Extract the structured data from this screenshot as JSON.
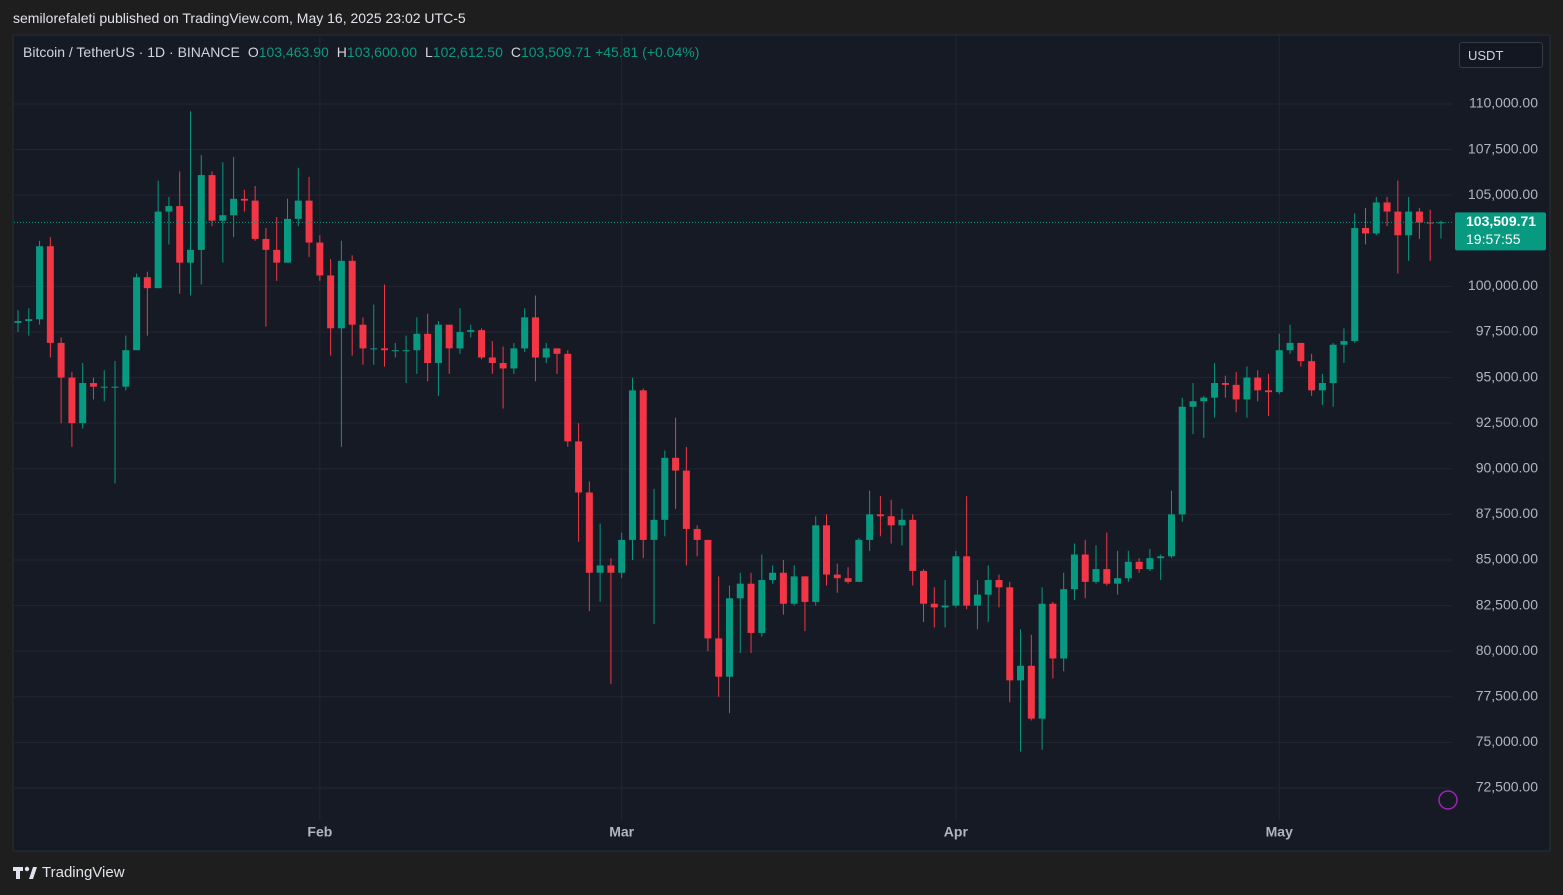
{
  "header": {
    "attribution": "semilorefaleti published on TradingView.com, May 16, 2025 23:02 UTC-5"
  },
  "footer": {
    "brand": "TradingView"
  },
  "chart_data": {
    "type": "candlestick",
    "title": "Bitcoin / TetherUS · 1D · BINANCE",
    "legend_values": [
      {
        "label": "O",
        "value": "103,463.90"
      },
      {
        "label": "H",
        "value": "103,600.00"
      },
      {
        "label": "L",
        "value": "102,612.50"
      },
      {
        "label": "C",
        "value": "103,509.71"
      }
    ],
    "change": "+45.81 (+0.04%)",
    "currency": "USDT",
    "last_price_label": "103,509.71",
    "countdown": "19:57:55",
    "up_color": "#089981",
    "down_color": "#f23645",
    "grid": true,
    "ylim": [
      69100,
      113780
    ],
    "yticks": [
      {
        "value": 72500,
        "label": "72,500.00"
      },
      {
        "value": 75000,
        "label": "75,000.00"
      },
      {
        "value": 77500,
        "label": "77,500.00"
      },
      {
        "value": 80000,
        "label": "80,000.00"
      },
      {
        "value": 82500,
        "label": "82,500.00"
      },
      {
        "value": 85000,
        "label": "85,000.00"
      },
      {
        "value": 87500,
        "label": "87,500.00"
      },
      {
        "value": 90000,
        "label": "90,000.00"
      },
      {
        "value": 92500,
        "label": "92,500.00"
      },
      {
        "value": 95000,
        "label": "95,000.00"
      },
      {
        "value": 97500,
        "label": "97,500.00"
      },
      {
        "value": 100000,
        "label": "100,000.00"
      },
      {
        "value": 105000,
        "label": "105,000.00"
      },
      {
        "value": 107500,
        "label": "107,500.00"
      },
      {
        "value": 110000,
        "label": "110,000.00"
      }
    ],
    "categories": [
      null,
      null,
      null,
      null,
      null,
      null,
      null,
      null,
      null,
      null,
      null,
      null,
      null,
      null,
      null,
      null,
      null,
      null,
      null,
      null,
      null,
      null,
      null,
      null,
      null,
      null,
      null,
      null,
      "Feb",
      null,
      null,
      null,
      null,
      null,
      null,
      null,
      null,
      null,
      null,
      null,
      null,
      null,
      null,
      null,
      null,
      null,
      null,
      null,
      null,
      null,
      null,
      null,
      null,
      null,
      null,
      null,
      "Mar",
      null,
      null,
      null,
      null,
      null,
      null,
      null,
      null,
      null,
      null,
      null,
      null,
      null,
      null,
      null,
      null,
      null,
      null,
      null,
      null,
      null,
      null,
      null,
      null,
      null,
      null,
      null,
      null,
      null,
      null,
      "Apr",
      null,
      null,
      null,
      null,
      null,
      null,
      null,
      null,
      null,
      null,
      null,
      null,
      null,
      null,
      null,
      null,
      null,
      null,
      null,
      null,
      null,
      null,
      null,
      null,
      null,
      null,
      null,
      null,
      null,
      "May",
      null,
      null,
      null,
      null,
      null,
      null,
      null,
      null,
      null,
      null,
      null,
      null,
      null,
      null,
      null
    ],
    "open": [
      98000,
      98100,
      98200,
      102200,
      96900,
      95000,
      92500,
      94700,
      94500,
      94500,
      94500,
      96500,
      100500,
      99900,
      104100,
      104400,
      101300,
      102000,
      106100,
      103600,
      103900,
      104800,
      104700,
      102600,
      102000,
      101300,
      103700,
      104700,
      102400,
      100600,
      97700,
      101400,
      97900,
      96600,
      96600,
      96500,
      96500,
      96500,
      97400,
      95800,
      97900,
      96600,
      97500,
      97600,
      96100,
      95800,
      95500,
      96600,
      98300,
      96100,
      96600,
      96300,
      91500,
      88700,
      84300,
      84700,
      84300,
      86100,
      94300,
      86100,
      87200,
      90600,
      89900,
      86700,
      86100,
      80700,
      78600,
      82900,
      83700,
      81000,
      83900,
      84300,
      82600,
      84100,
      82700,
      86900,
      84200,
      84000,
      83800,
      86100,
      87500,
      87400,
      86900,
      87200,
      84400,
      82600,
      82400,
      82500,
      85200,
      82500,
      83100,
      83900,
      83500,
      78400,
      79200,
      76300,
      82600,
      79600,
      83400,
      85300,
      83800,
      84500,
      83700,
      84000,
      84900,
      84500,
      85100,
      85200,
      87500,
      93400,
      93700,
      93900,
      94700,
      94600,
      93800,
      95000,
      94300,
      94200,
      96500,
      96900,
      95900,
      94300,
      94700,
      96800,
      97000,
      103200,
      102900,
      104600,
      104100,
      102800,
      104100,
      103500,
      103463.9
    ],
    "high": [
      98700,
      98800,
      102500,
      102700,
      97200,
      95300,
      95800,
      95000,
      95400,
      95900,
      97300,
      100700,
      100800,
      105800,
      104900,
      106300,
      109600,
      107200,
      106300,
      106800,
      107100,
      105300,
      105500,
      103200,
      103800,
      104800,
      106500,
      106000,
      102800,
      101500,
      102500,
      101700,
      98300,
      99000,
      100100,
      96900,
      97300,
      98300,
      98500,
      98100,
      97900,
      98800,
      97900,
      97700,
      97000,
      96700,
      96900,
      98800,
      99500,
      96900,
      96500,
      96500,
      92500,
      89300,
      87000,
      85100,
      86500,
      95000,
      94400,
      88900,
      91000,
      92800,
      91200,
      86900,
      86100,
      84100,
      83600,
      84300,
      84300,
      85300,
      84700,
      85000,
      84700,
      84100,
      87400,
      87500,
      84800,
      84600,
      86200,
      88800,
      88500,
      88300,
      87800,
      87500,
      84500,
      83500,
      83900,
      85500,
      88500,
      83900,
      84700,
      84200,
      83800,
      81200,
      80900,
      83500,
      82700,
      84300,
      85900,
      86100,
      85800,
      86500,
      85500,
      85500,
      85100,
      85600,
      85300,
      88800,
      93900,
      94700,
      94000,
      95800,
      95100,
      95300,
      95600,
      95400,
      95200,
      97400,
      97900,
      96900,
      96300,
      95200,
      96900,
      97700,
      104000,
      104300,
      104900,
      104900,
      105800,
      104900,
      104300,
      104200,
      103600
    ],
    "low": [
      97500,
      97300,
      97900,
      96100,
      92500,
      91200,
      92200,
      93800,
      93700,
      89200,
      94300,
      96500,
      97300,
      99900,
      102300,
      99600,
      99500,
      100100,
      103300,
      101300,
      102700,
      104100,
      102500,
      97800,
      100300,
      101300,
      103300,
      101600,
      100300,
      96200,
      91200,
      96200,
      95700,
      95700,
      95600,
      96100,
      94700,
      95200,
      94800,
      94000,
      95200,
      96300,
      97200,
      96000,
      95200,
      93300,
      95200,
      96400,
      94800,
      95800,
      95200,
      91200,
      86000,
      82200,
      82700,
      78200,
      84000,
      85000,
      85100,
      81500,
      86300,
      87800,
      84700,
      85200,
      80000,
      77500,
      76600,
      79900,
      79900,
      80800,
      83700,
      82000,
      82500,
      81100,
      82500,
      83600,
      83200,
      83700,
      83800,
      85500,
      86300,
      85900,
      85800,
      83600,
      81600,
      81300,
      81300,
      82400,
      82300,
      81200,
      81600,
      82400,
      77200,
      74500,
      76200,
      74600,
      78500,
      78900,
      82800,
      82900,
      83700,
      83600,
      83100,
      83800,
      84300,
      84400,
      83900,
      85100,
      87100,
      91900,
      91700,
      92800,
      93900,
      93100,
      92800,
      93700,
      92900,
      94100,
      96300,
      95600,
      94000,
      93500,
      93400,
      95800,
      96900,
      102300,
      102800,
      103300,
      100700,
      101400,
      102600,
      101400,
      102612.5
    ],
    "close": [
      98100,
      98200,
      102200,
      96900,
      95000,
      92500,
      94700,
      94500,
      94500,
      94500,
      96500,
      100500,
      99900,
      104100,
      104400,
      101300,
      102000,
      106100,
      103600,
      103900,
      104800,
      104700,
      102600,
      102000,
      101300,
      103700,
      104700,
      102400,
      100600,
      97700,
      101400,
      97900,
      96600,
      96600,
      96500,
      96500,
      96500,
      97400,
      95800,
      97900,
      96600,
      97500,
      97600,
      96100,
      95800,
      95500,
      96600,
      98300,
      96100,
      96600,
      96300,
      91500,
      88700,
      84300,
      84700,
      84300,
      86100,
      94300,
      86100,
      87200,
      90600,
      89900,
      86700,
      86100,
      80700,
      78600,
      82900,
      83700,
      81000,
      83900,
      84300,
      82600,
      84100,
      82700,
      86900,
      84200,
      84000,
      83800,
      86100,
      87500,
      87400,
      86900,
      87200,
      84400,
      82600,
      82400,
      82500,
      85200,
      82500,
      83100,
      83900,
      83500,
      78400,
      79200,
      76300,
      82600,
      79600,
      83400,
      85300,
      83800,
      84500,
      83700,
      84000,
      84900,
      84500,
      85100,
      85200,
      87500,
      93400,
      93700,
      93900,
      94700,
      94600,
      93800,
      95000,
      94300,
      94200,
      96500,
      96900,
      95900,
      94300,
      94700,
      96800,
      97000,
      103200,
      102900,
      104600,
      104100,
      102800,
      104100,
      103500,
      103463.9,
      103509.71
    ]
  }
}
